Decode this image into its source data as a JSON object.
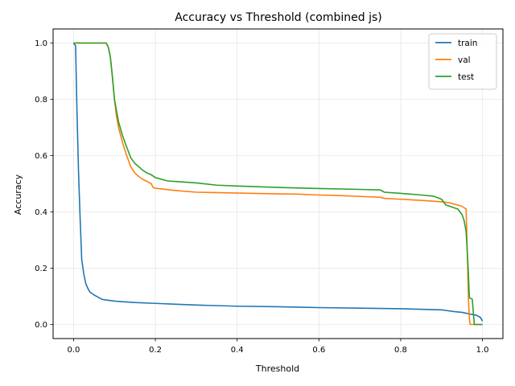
{
  "chart_data": {
    "type": "line",
    "title": "Accuracy vs Threshold (combined js)",
    "xlabel": "Threshold",
    "ylabel": "Accuracy",
    "xlim": [
      -0.05,
      1.05
    ],
    "ylim": [
      -0.05,
      1.05
    ],
    "xticks": [
      0.0,
      0.2,
      0.4,
      0.6,
      0.8,
      1.0
    ],
    "xtick_labels": [
      "0.0",
      "0.2",
      "0.4",
      "0.6",
      "0.8",
      "1.0"
    ],
    "yticks": [
      0.0,
      0.2,
      0.4,
      0.6,
      0.8,
      1.0
    ],
    "ytick_labels": [
      "0.0",
      "0.2",
      "0.4",
      "0.6",
      "0.8",
      "1.0"
    ],
    "grid": true,
    "legend_position": "top-right",
    "series": [
      {
        "name": "train",
        "color": "#1f77b4",
        "x": [
          0.0,
          0.005,
          0.008,
          0.012,
          0.016,
          0.02,
          0.025,
          0.03,
          0.035,
          0.04,
          0.05,
          0.06,
          0.07,
          0.08,
          0.1,
          0.12,
          0.15,
          0.2,
          0.25,
          0.3,
          0.4,
          0.5,
          0.6,
          0.7,
          0.8,
          0.9,
          0.91,
          0.93,
          0.95,
          0.97,
          0.985,
          0.995,
          1.0
        ],
        "y": [
          1.0,
          0.99,
          0.78,
          0.55,
          0.38,
          0.23,
          0.18,
          0.145,
          0.128,
          0.115,
          0.105,
          0.097,
          0.089,
          0.087,
          0.083,
          0.081,
          0.078,
          0.075,
          0.072,
          0.069,
          0.065,
          0.063,
          0.06,
          0.058,
          0.056,
          0.052,
          0.05,
          0.046,
          0.043,
          0.037,
          0.033,
          0.025,
          0.012
        ]
      },
      {
        "name": "val",
        "color": "#ff7f0e",
        "x": [
          0.0,
          0.05,
          0.08,
          0.085,
          0.09,
          0.095,
          0.1,
          0.105,
          0.11,
          0.12,
          0.13,
          0.14,
          0.15,
          0.16,
          0.17,
          0.18,
          0.19,
          0.195,
          0.2,
          0.25,
          0.3,
          0.4,
          0.5,
          0.55,
          0.6,
          0.65,
          0.7,
          0.75,
          0.76,
          0.8,
          0.85,
          0.9,
          0.92,
          0.95,
          0.96,
          0.963,
          0.966,
          0.968,
          0.97,
          1.0
        ],
        "y": [
          1.0,
          1.0,
          1.0,
          0.985,
          0.95,
          0.88,
          0.8,
          0.74,
          0.7,
          0.645,
          0.6,
          0.56,
          0.538,
          0.525,
          0.515,
          0.508,
          0.5,
          0.486,
          0.484,
          0.476,
          0.47,
          0.467,
          0.464,
          0.463,
          0.46,
          0.458,
          0.455,
          0.452,
          0.448,
          0.445,
          0.441,
          0.436,
          0.432,
          0.42,
          0.41,
          0.25,
          0.08,
          0.02,
          0.0,
          0.0
        ]
      },
      {
        "name": "test",
        "color": "#2ca02c",
        "x": [
          0.0,
          0.05,
          0.08,
          0.085,
          0.09,
          0.095,
          0.1,
          0.105,
          0.11,
          0.12,
          0.13,
          0.14,
          0.15,
          0.16,
          0.17,
          0.18,
          0.19,
          0.2,
          0.23,
          0.25,
          0.3,
          0.35,
          0.4,
          0.5,
          0.6,
          0.7,
          0.75,
          0.76,
          0.8,
          0.85,
          0.88,
          0.9,
          0.91,
          0.93,
          0.94,
          0.95,
          0.955,
          0.96,
          0.965,
          0.968,
          0.972,
          0.975,
          0.98,
          0.99,
          1.0
        ],
        "y": [
          1.0,
          1.0,
          1.0,
          0.985,
          0.95,
          0.88,
          0.8,
          0.76,
          0.72,
          0.67,
          0.63,
          0.592,
          0.572,
          0.56,
          0.547,
          0.538,
          0.532,
          0.522,
          0.51,
          0.508,
          0.503,
          0.495,
          0.492,
          0.487,
          0.483,
          0.48,
          0.478,
          0.47,
          0.466,
          0.46,
          0.456,
          0.445,
          0.425,
          0.415,
          0.41,
          0.39,
          0.37,
          0.33,
          0.2,
          0.095,
          0.092,
          0.09,
          0.0,
          0.0,
          0.0
        ]
      }
    ]
  }
}
